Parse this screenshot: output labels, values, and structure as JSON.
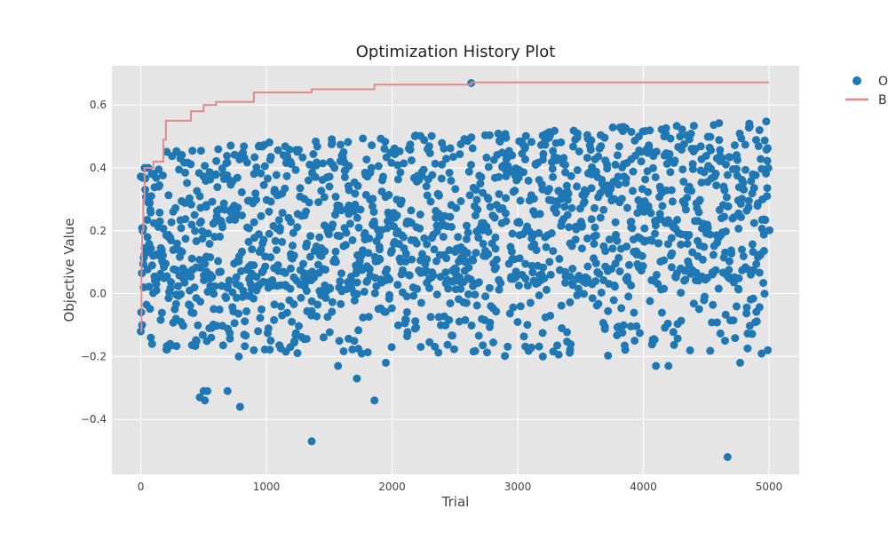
{
  "chart_data": {
    "type": "scatter",
    "title": "Optimization History Plot",
    "xlabel": "Trial",
    "ylabel": "Objective Value",
    "xlim": [
      -230,
      5240
    ],
    "ylim": [
      -0.575,
      0.725
    ],
    "x_ticks": [
      0,
      1000,
      2000,
      3000,
      4000,
      5000
    ],
    "y_ticks": [
      -0.4,
      -0.2,
      0.0,
      0.2,
      0.4,
      0.6
    ],
    "x_tick_labels": [
      "0",
      "1000",
      "2000",
      "3000",
      "4000",
      "5000"
    ],
    "y_tick_labels": [
      "−0.4",
      "−0.2",
      "0.0",
      "0.2",
      "0.4",
      "0.6"
    ],
    "grid": true,
    "legend_position": "top-right, outside plot",
    "legend_labels": [
      "O",
      "B"
    ],
    "colors": {
      "points": "#1f77b4",
      "best_line": "#e08b8b",
      "plot_background": "#e5e5e5",
      "grid": "#ffffff"
    },
    "series": [
      {
        "name": "O",
        "kind": "scatter",
        "n_points": 5000,
        "highlighted_points": [
          {
            "x": 0,
            "y": -0.12
          },
          {
            "x": 10,
            "y": -0.1
          },
          {
            "x": 15,
            "y": 0.2
          },
          {
            "x": 30,
            "y": 0.4
          },
          {
            "x": 60,
            "y": 0.4
          },
          {
            "x": 80,
            "y": -0.14
          },
          {
            "x": 90,
            "y": -0.16
          },
          {
            "x": 280,
            "y": -0.08
          },
          {
            "x": 320,
            "y": -0.09
          },
          {
            "x": 470,
            "y": -0.33
          },
          {
            "x": 500,
            "y": -0.31
          },
          {
            "x": 510,
            "y": -0.34
          },
          {
            "x": 530,
            "y": -0.31
          },
          {
            "x": 560,
            "y": -0.14
          },
          {
            "x": 690,
            "y": -0.31
          },
          {
            "x": 780,
            "y": -0.2
          },
          {
            "x": 790,
            "y": -0.36
          },
          {
            "x": 900,
            "y": -0.18
          },
          {
            "x": 1190,
            "y": -0.17
          },
          {
            "x": 1360,
            "y": -0.47
          },
          {
            "x": 1570,
            "y": -0.23
          },
          {
            "x": 1720,
            "y": -0.27
          },
          {
            "x": 1860,
            "y": -0.34
          },
          {
            "x": 1950,
            "y": -0.22
          },
          {
            "x": 2630,
            "y": 0.67
          },
          {
            "x": 3200,
            "y": -0.2
          },
          {
            "x": 3350,
            "y": -0.11
          },
          {
            "x": 4100,
            "y": -0.23
          },
          {
            "x": 4200,
            "y": -0.23
          },
          {
            "x": 4650,
            "y": -0.15
          },
          {
            "x": 4670,
            "y": -0.52
          },
          {
            "x": 4770,
            "y": -0.22
          },
          {
            "x": 4990,
            "y": -0.18
          }
        ]
      },
      {
        "name": "B",
        "kind": "step",
        "points": [
          {
            "x": 0,
            "y": -0.12
          },
          {
            "x": 5,
            "y": 0.1
          },
          {
            "x": 10,
            "y": 0.2
          },
          {
            "x": 20,
            "y": 0.3
          },
          {
            "x": 30,
            "y": 0.4
          },
          {
            "x": 100,
            "y": 0.42
          },
          {
            "x": 180,
            "y": 0.49
          },
          {
            "x": 200,
            "y": 0.55
          },
          {
            "x": 400,
            "y": 0.58
          },
          {
            "x": 500,
            "y": 0.6
          },
          {
            "x": 600,
            "y": 0.61
          },
          {
            "x": 900,
            "y": 0.64
          },
          {
            "x": 1360,
            "y": 0.65
          },
          {
            "x": 1860,
            "y": 0.665
          },
          {
            "x": 2630,
            "y": 0.672
          },
          {
            "x": 5000,
            "y": 0.672
          }
        ]
      }
    ]
  }
}
